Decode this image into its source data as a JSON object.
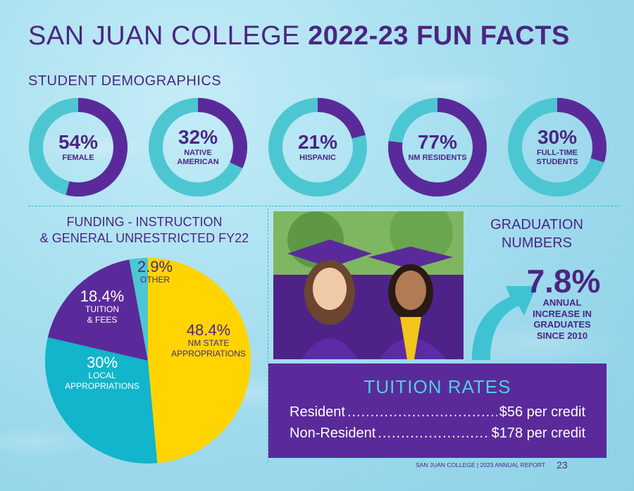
{
  "title": {
    "regular": "SAN JUAN COLLEGE",
    "bold": "2022-23 FUN FACTS"
  },
  "colors": {
    "purple": "#5a2a9a",
    "teal": "#4cc7d2",
    "yellow": "#ffd400",
    "cyan": "#12b5cb"
  },
  "demographics": {
    "heading": "STUDENT DEMOGRAPHICS",
    "items": [
      {
        "pct_label": "54%",
        "pct": 54,
        "label": "FEMALE"
      },
      {
        "pct_label": "32%",
        "pct": 32,
        "label": "NATIVE AMERICAN"
      },
      {
        "pct_label": "21%",
        "pct": 21,
        "label": "HISPANIC"
      },
      {
        "pct_label": "77%",
        "pct": 77,
        "label": "NM RESIDENTS"
      },
      {
        "pct_label": "30%",
        "pct": 30,
        "label": "FULL-TIME STUDENTS"
      }
    ]
  },
  "funding": {
    "heading_line1": "FUNDING - INSTRUCTION",
    "heading_line2": "& GENERAL UNRESTRICTED FY22",
    "slices": [
      {
        "value": 48.4,
        "value_label": "48.4%",
        "label1": "NM STATE",
        "label2": "APPROPRIATIONS",
        "color": "#ffd400"
      },
      {
        "value": 30,
        "value_label": "30%",
        "label1": "LOCAL",
        "label2": "APPROPRIATIONS",
        "color": "#12b5cb"
      },
      {
        "value": 18.4,
        "value_label": "18.4%",
        "label1": "TUITION",
        "label2": "& FEES",
        "color": "#5a2a9a"
      },
      {
        "value": 2.9,
        "value_label": "2.9%",
        "label1": "OTHER",
        "label2": "",
        "color": "#4cc7d2"
      }
    ]
  },
  "graduation": {
    "heading_line1": "GRADUATION",
    "heading_line2": "NUMBERS",
    "pct": "7.8%",
    "desc1": "ANNUAL",
    "desc2": "INCREASE IN",
    "desc3": "GRADUATES",
    "desc4": "SINCE 2010"
  },
  "tuition": {
    "heading": "TUITION RATES",
    "rows": [
      {
        "label": "Resident",
        "value": "$56 per credit"
      },
      {
        "label": "Non-Resident",
        "value": "$178 per credit"
      }
    ]
  },
  "footer": {
    "text": "SAN JUAN COLLEGE | 2023 ANNUAL REPORT",
    "page": "23"
  }
}
